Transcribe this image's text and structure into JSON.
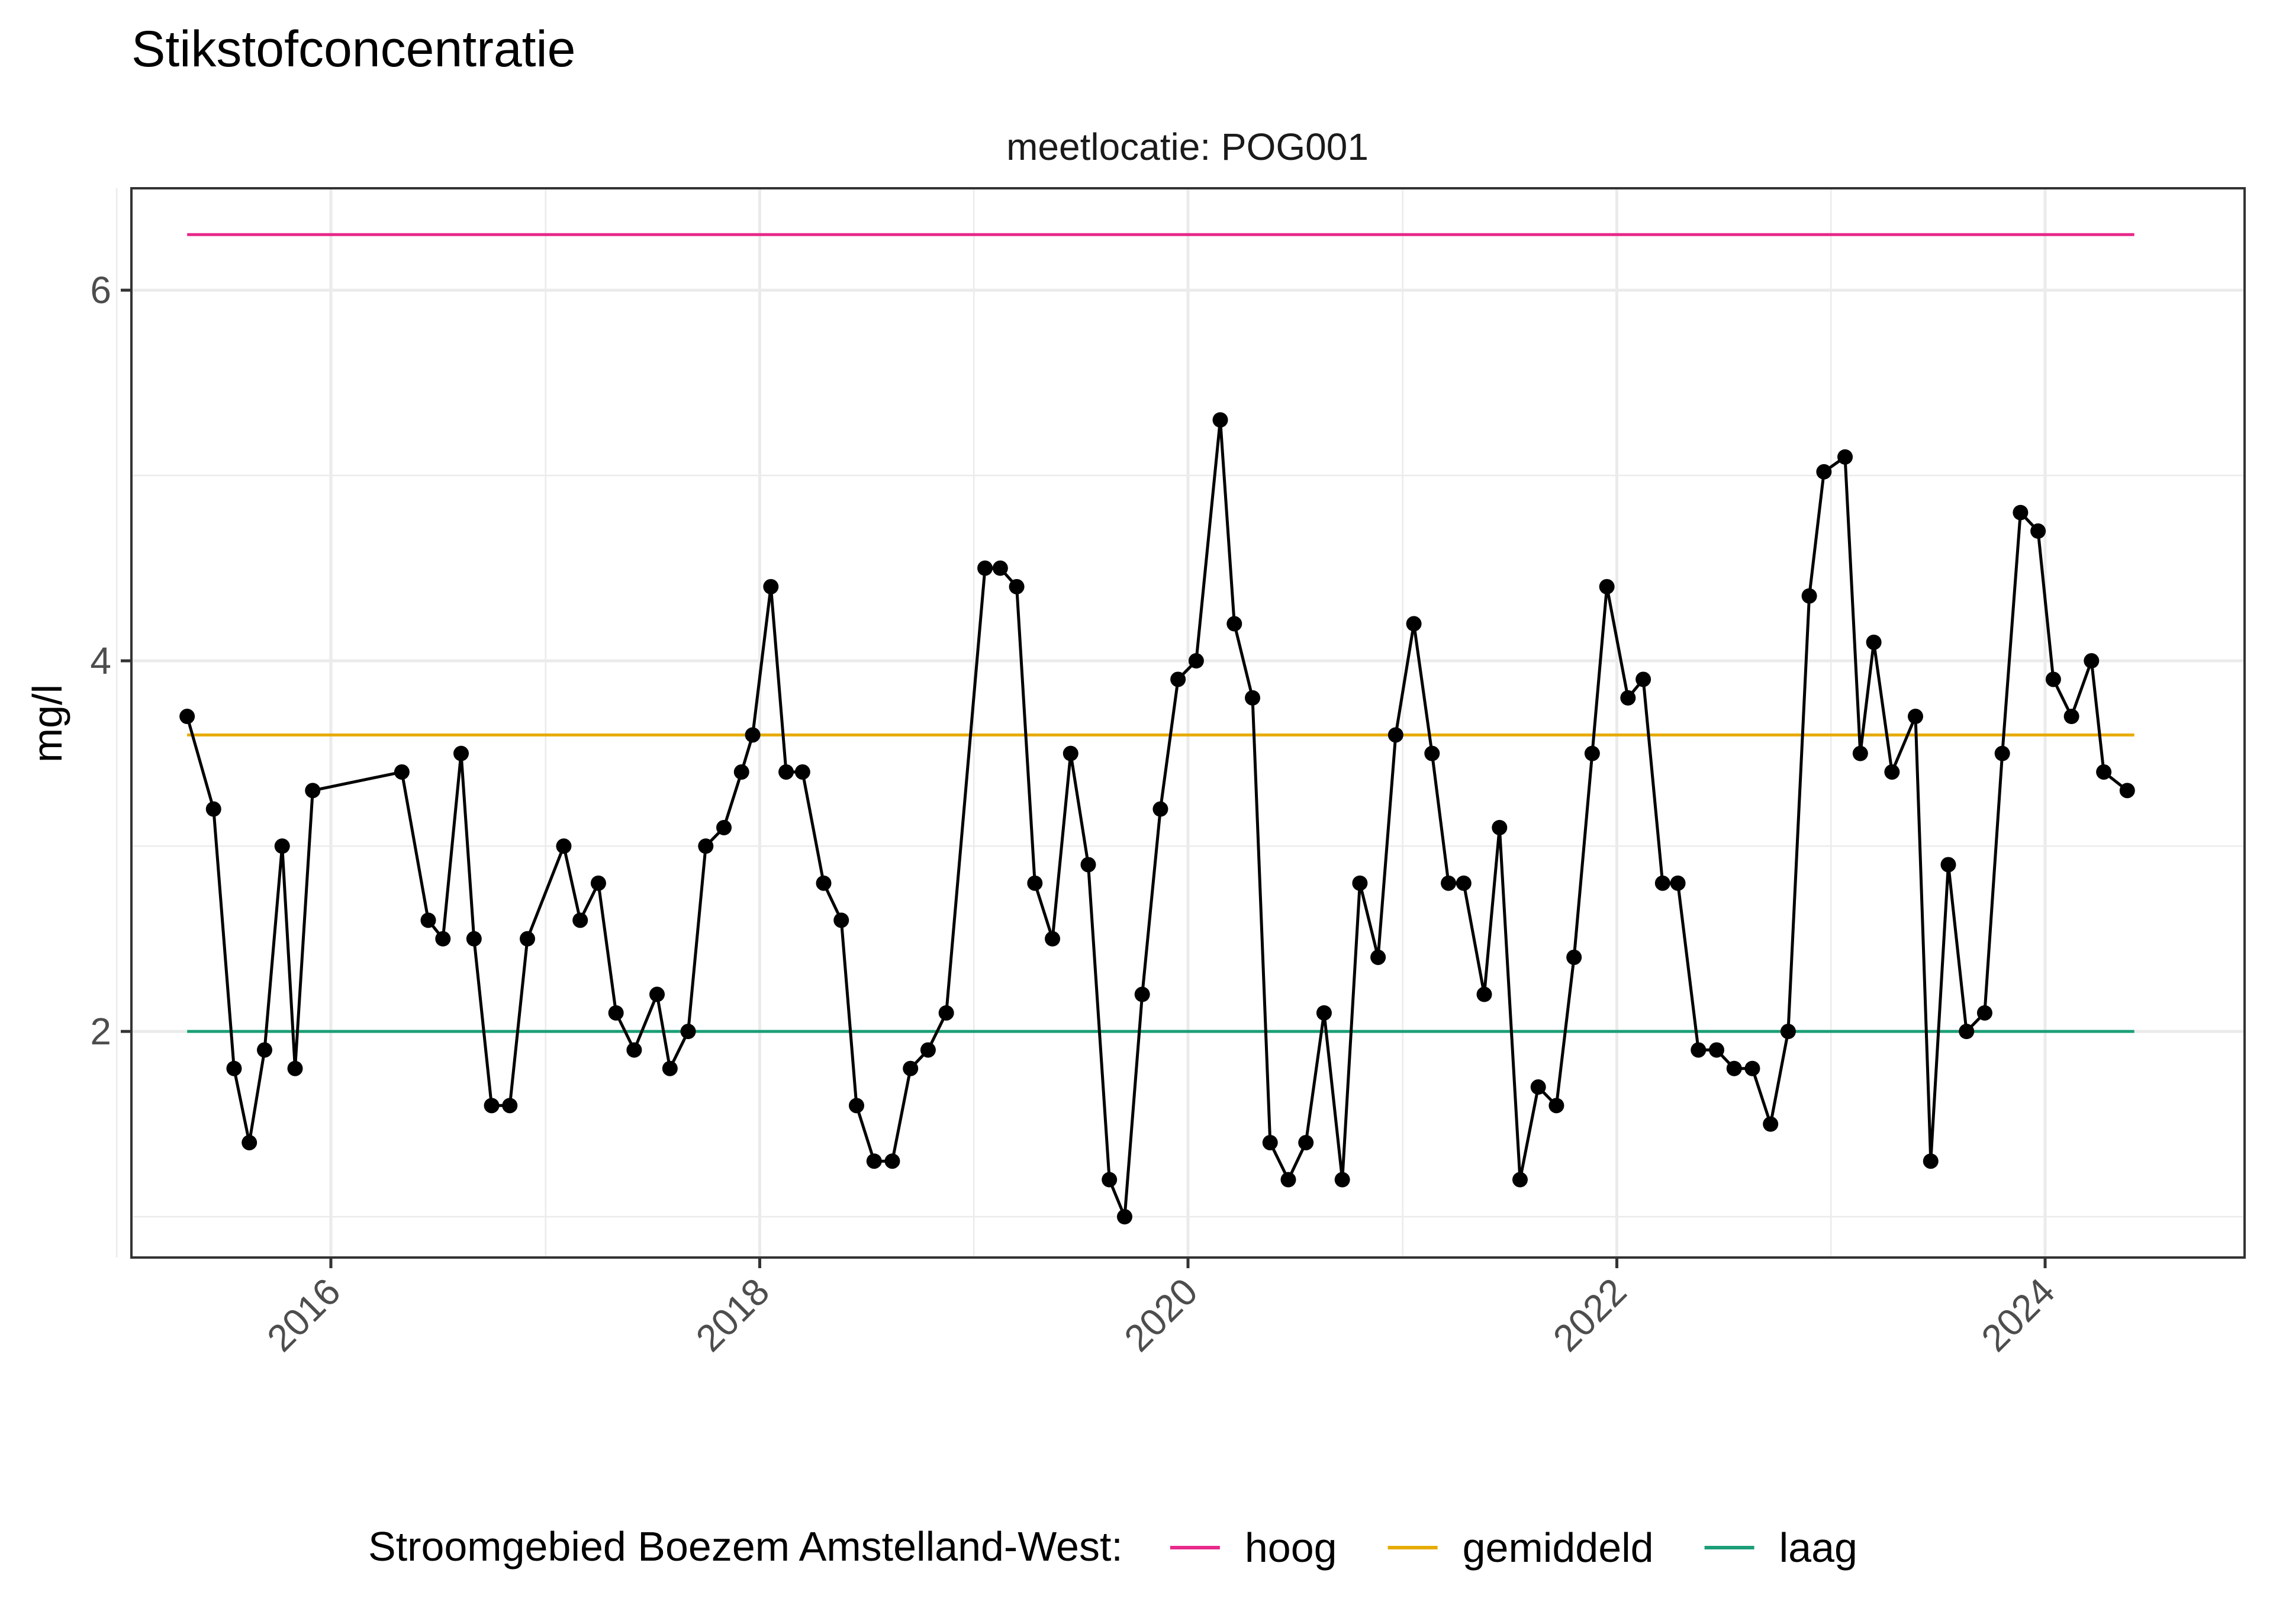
{
  "chart_data": {
    "type": "line",
    "title": "Stikstofconcentratie",
    "facet_label": "meetlocatie: POG001",
    "xlabel": "",
    "ylabel": "mg/l",
    "x_ticks": [
      "2016",
      "2018",
      "2020",
      "2022",
      "2024"
    ],
    "y_ticks": [
      2,
      4,
      6
    ],
    "xlim": [
      "2015-01-26",
      "2024-12-06"
    ],
    "ylim": [
      0.78,
      6.55
    ],
    "grid": true,
    "legend_position": "bottom",
    "legend_title": "Stroomgebied Boezem Amstelland-West:",
    "reference_lines": [
      {
        "name": "hoog",
        "value": 6.3,
        "color": "#e7298a"
      },
      {
        "name": "gemiddeld",
        "value": 3.6,
        "color": "#e6ab02"
      },
      {
        "name": "laag",
        "value": 2.0,
        "color": "#1b9e77"
      }
    ],
    "reference_start": "2015-05-01",
    "reference_end": "2024-06-01",
    "series": [
      {
        "color": "#000000",
        "points": [
          [
            "2015-05-01",
            3.7
          ],
          [
            "2015-06-15",
            3.2
          ],
          [
            "2015-07-20",
            1.8
          ],
          [
            "2015-08-15",
            1.4
          ],
          [
            "2015-09-10",
            1.9
          ],
          [
            "2015-10-10",
            3.0
          ],
          [
            "2015-11-01",
            1.8
          ],
          [
            "2015-12-01",
            3.3
          ],
          [
            "2016-05-01",
            3.4
          ],
          [
            "2016-06-15",
            2.6
          ],
          [
            "2016-07-10",
            2.5
          ],
          [
            "2016-08-10",
            3.5
          ],
          [
            "2016-09-01",
            2.5
          ],
          [
            "2016-10-01",
            1.6
          ],
          [
            "2016-11-01",
            1.6
          ],
          [
            "2016-12-01",
            2.5
          ],
          [
            "2017-02-01",
            3.0
          ],
          [
            "2017-03-01",
            2.6
          ],
          [
            "2017-04-01",
            2.8
          ],
          [
            "2017-05-01",
            2.1
          ],
          [
            "2017-06-01",
            1.9
          ],
          [
            "2017-07-10",
            2.2
          ],
          [
            "2017-08-01",
            1.8
          ],
          [
            "2017-09-01",
            2.0
          ],
          [
            "2017-10-01",
            3.0
          ],
          [
            "2017-11-01",
            3.1
          ],
          [
            "2017-12-01",
            3.4
          ],
          [
            "2017-12-20",
            3.6
          ],
          [
            "2018-01-20",
            4.4
          ],
          [
            "2018-02-15",
            3.4
          ],
          [
            "2018-03-15",
            3.4
          ],
          [
            "2018-04-20",
            2.8
          ],
          [
            "2018-05-20",
            2.6
          ],
          [
            "2018-06-15",
            1.6
          ],
          [
            "2018-07-15",
            1.3
          ],
          [
            "2018-08-15",
            1.3
          ],
          [
            "2018-09-15",
            1.8
          ],
          [
            "2018-10-15",
            1.9
          ],
          [
            "2018-11-15",
            2.1
          ],
          [
            "2019-01-20",
            4.5
          ],
          [
            "2019-02-15",
            4.5
          ],
          [
            "2019-03-15",
            4.4
          ],
          [
            "2019-04-15",
            2.8
          ],
          [
            "2019-05-15",
            2.5
          ],
          [
            "2019-06-15",
            3.5
          ],
          [
            "2019-07-15",
            2.9
          ],
          [
            "2019-08-20",
            1.2
          ],
          [
            "2019-09-15",
            1.0
          ],
          [
            "2019-10-15",
            2.2
          ],
          [
            "2019-11-15",
            3.2
          ],
          [
            "2019-12-15",
            3.9
          ],
          [
            "2020-01-15",
            4.0
          ],
          [
            "2020-02-25",
            5.3
          ],
          [
            "2020-03-20",
            4.2
          ],
          [
            "2020-04-20",
            3.8
          ],
          [
            "2020-05-20",
            1.4
          ],
          [
            "2020-06-20",
            1.2
          ],
          [
            "2020-07-20",
            1.4
          ],
          [
            "2020-08-20",
            2.1
          ],
          [
            "2020-09-20",
            1.2
          ],
          [
            "2020-10-20",
            2.8
          ],
          [
            "2020-11-20",
            2.4
          ],
          [
            "2020-12-20",
            3.6
          ],
          [
            "2021-01-20",
            4.2
          ],
          [
            "2021-02-20",
            3.5
          ],
          [
            "2021-03-20",
            2.8
          ],
          [
            "2021-04-15",
            2.8
          ],
          [
            "2021-05-20",
            2.2
          ],
          [
            "2021-06-15",
            3.1
          ],
          [
            "2021-07-20",
            1.2
          ],
          [
            "2021-08-20",
            1.7
          ],
          [
            "2021-09-20",
            1.6
          ],
          [
            "2021-10-20",
            2.4
          ],
          [
            "2021-11-20",
            3.5
          ],
          [
            "2021-12-15",
            4.4
          ],
          [
            "2022-01-20",
            3.8
          ],
          [
            "2022-02-15",
            3.9
          ],
          [
            "2022-03-20",
            2.8
          ],
          [
            "2022-04-15",
            2.8
          ],
          [
            "2022-05-20",
            1.9
          ],
          [
            "2022-06-20",
            1.9
          ],
          [
            "2022-07-20",
            1.8
          ],
          [
            "2022-08-20",
            1.8
          ],
          [
            "2022-09-20",
            1.5
          ],
          [
            "2022-10-20",
            2.0
          ],
          [
            "2022-11-25",
            4.35
          ],
          [
            "2022-12-20",
            5.02
          ],
          [
            "2023-01-25",
            5.1
          ],
          [
            "2023-02-20",
            3.5
          ],
          [
            "2023-03-15",
            4.1
          ],
          [
            "2023-04-15",
            3.4
          ],
          [
            "2023-05-25",
            3.7
          ],
          [
            "2023-06-20",
            1.3
          ],
          [
            "2023-07-20",
            2.9
          ],
          [
            "2023-08-20",
            2.0
          ],
          [
            "2023-09-20",
            2.1
          ],
          [
            "2023-10-20",
            3.5
          ],
          [
            "2023-11-20",
            4.8
          ],
          [
            "2023-12-20",
            4.7
          ],
          [
            "2024-01-15",
            3.9
          ],
          [
            "2024-02-15",
            3.7
          ],
          [
            "2024-03-20",
            4.0
          ],
          [
            "2024-04-10",
            3.4
          ],
          [
            "2024-05-20",
            3.3
          ]
        ]
      }
    ]
  }
}
